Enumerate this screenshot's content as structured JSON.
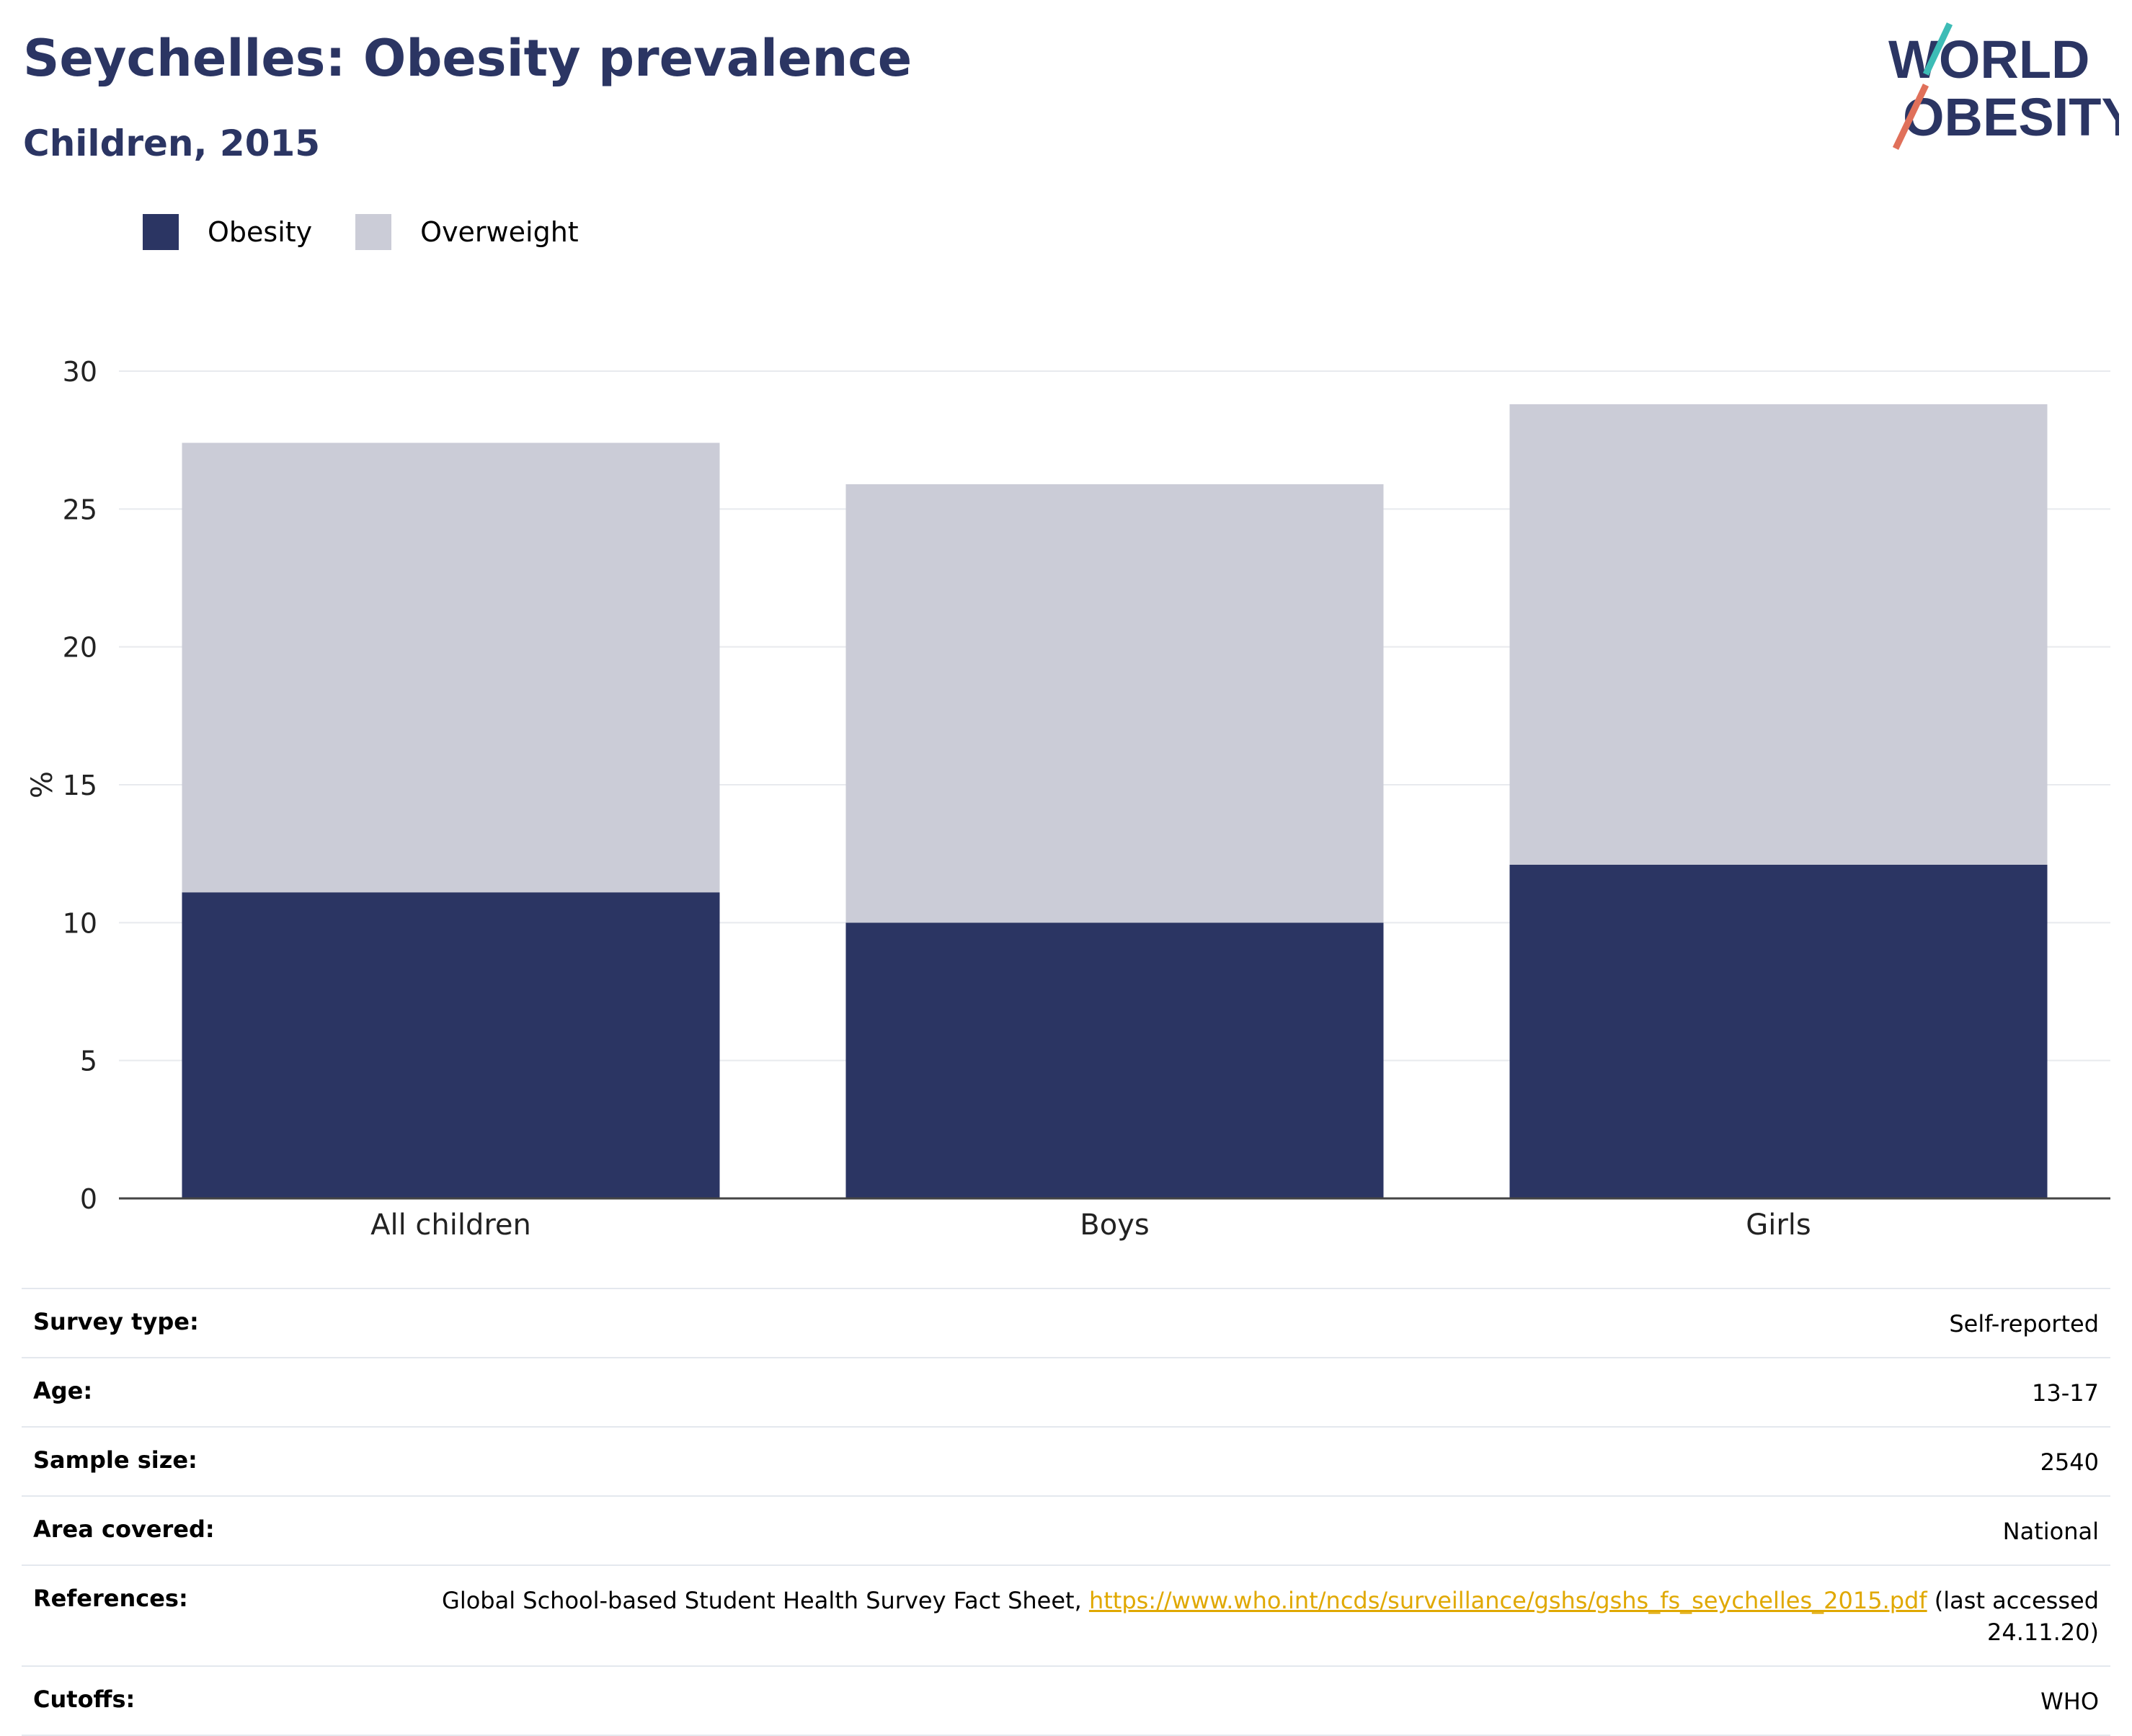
{
  "header": {
    "title": "Seychelles: Obesity prevalence",
    "subtitle": "Children, 2015",
    "logo_text": [
      "WORLD",
      "OBESITY"
    ]
  },
  "legend": [
    {
      "label": "Obesity",
      "color": "#2b3563"
    },
    {
      "label": "Overweight",
      "color": "#cbccd7"
    }
  ],
  "chart_data": {
    "type": "bar",
    "stacked": true,
    "categories": [
      "All children",
      "Boys",
      "Girls"
    ],
    "series": [
      {
        "name": "Obesity",
        "values": [
          11.1,
          10.0,
          12.1
        ],
        "color": "#2b3563"
      },
      {
        "name": "Overweight",
        "values": [
          16.3,
          15.9,
          16.7
        ],
        "color": "#cbccd7"
      }
    ],
    "ylabel": "%",
    "ylim": [
      0,
      30
    ],
    "yticks": [
      0,
      5,
      10,
      15,
      20,
      25,
      30
    ],
    "grid": true,
    "legend_position": "top-left"
  },
  "info": {
    "rows": [
      {
        "key": "Survey type:",
        "value": "Self-reported"
      },
      {
        "key": "Age:",
        "value": "13-17"
      },
      {
        "key": "Sample size:",
        "value": "2540"
      },
      {
        "key": "Area covered:",
        "value": "National"
      },
      {
        "key": "References:",
        "value_prefix": "Global School-based Student Health Survey Fact Sheet, ",
        "link": "https://www.who.int/ncds/surveillance/gshs/gshs_fs_seychelles_2015.pdf",
        "value_suffix": " (last accessed 24.11.20)"
      },
      {
        "key": "Cutoffs:",
        "value": "WHO"
      }
    ]
  }
}
